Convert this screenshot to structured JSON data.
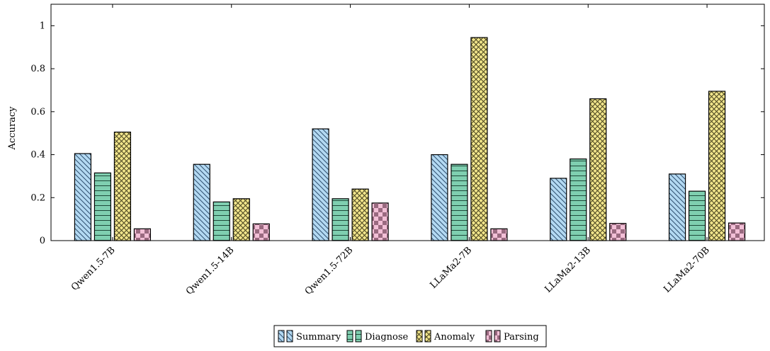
{
  "chart_data": {
    "type": "bar",
    "title": "",
    "xlabel": "",
    "ylabel": "Accuracy",
    "ylim": [
      0,
      1.1
    ],
    "yticks": [
      0,
      0.2,
      0.4,
      0.6,
      0.8,
      1
    ],
    "grid": false,
    "legend_position": "bottom-center",
    "categories": [
      "Qwen1.5-7B",
      "Qwen1.5-14B",
      "Qwen1.5-72B",
      "LLaMa2-7B",
      "LLaMa2-13B",
      "LLaMa2-70B"
    ],
    "series": [
      {
        "name": "Summary",
        "values": [
          0.405,
          0.355,
          0.52,
          0.4,
          0.29,
          0.31
        ],
        "color": "#b3d9f2",
        "pattern": "diagonal-lines"
      },
      {
        "name": "Diagnose",
        "values": [
          0.315,
          0.18,
          0.195,
          0.355,
          0.38,
          0.23
        ],
        "color": "#7fcfb0",
        "pattern": "horizontal-lines"
      },
      {
        "name": "Anomaly",
        "values": [
          0.505,
          0.195,
          0.24,
          0.945,
          0.66,
          0.695
        ],
        "color": "#f2e68c",
        "pattern": "crosshatch"
      },
      {
        "name": "Parsing",
        "values": [
          0.055,
          0.078,
          0.175,
          0.055,
          0.08,
          0.082
        ],
        "color": "#f2bfd6",
        "pattern": "checkerboard"
      }
    ]
  }
}
